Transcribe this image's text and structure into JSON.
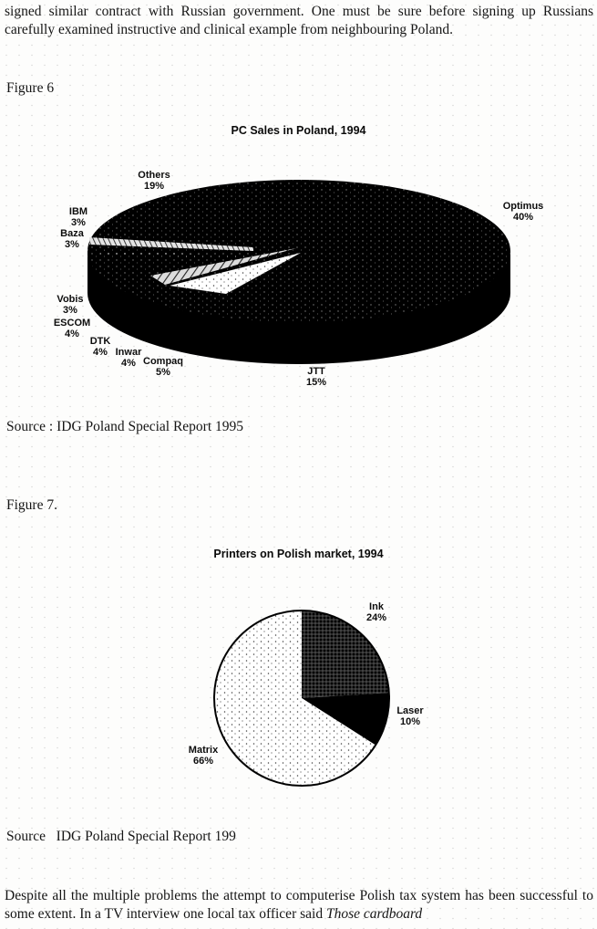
{
  "page": {
    "top_paragraph": "signed similar contract with Russian government. One must be sure before signing up Russians carefully examined instructive and clinical example from neighbouring Poland.",
    "bottom_paragraph_text": "Despite all the multiple problems the attempt to computerise Polish tax system has been successful to some extent. In a TV interview one local tax officer said ",
    "bottom_paragraph_italic": "Those cardboard"
  },
  "figures": {
    "fig6": {
      "label": "Figure 6",
      "source": "Source : IDG Poland Special Report 1995"
    },
    "fig7": {
      "label": "Figure 7.",
      "source": "Source   IDG Poland Special Report 199"
    }
  },
  "chart_data": [
    {
      "type": "pie",
      "style": "3d-exploded-monochrome",
      "title": "PC Sales in Poland, 1994",
      "legend_position": "none",
      "labels_on_chart": true,
      "colors": {
        "body": "#000000",
        "background": "#ffffff"
      },
      "slices": [
        {
          "name": "Optimus",
          "pct": "40%",
          "value": 40
        },
        {
          "name": "JTT",
          "pct": "15%",
          "value": 15
        },
        {
          "name": "Compaq",
          "pct": "5%",
          "value": 5
        },
        {
          "name": "Inwar",
          "pct": "4%",
          "value": 4
        },
        {
          "name": "DTK",
          "pct": "4%",
          "value": 4
        },
        {
          "name": "ESCOM",
          "pct": "4%",
          "value": 4
        },
        {
          "name": "Vobis",
          "pct": "3%",
          "value": 3
        },
        {
          "name": "Baza",
          "pct": "3%",
          "value": 3
        },
        {
          "name": "IBM",
          "pct": "3%",
          "value": 3
        },
        {
          "name": "Others",
          "pct": "19%",
          "value": 19
        }
      ]
    },
    {
      "type": "pie",
      "style": "flat-monochrome",
      "title": "Printers on Polish market, 1994",
      "legend_position": "none",
      "labels_on_chart": true,
      "slices": [
        {
          "name": "Ink",
          "pct": "24%",
          "value": 24,
          "fill": "crosshatch"
        },
        {
          "name": "Laser",
          "pct": "10%",
          "value": 10,
          "fill": "black"
        },
        {
          "name": "Matrix",
          "pct": "66%",
          "value": 66,
          "fill": "dots"
        }
      ]
    }
  ]
}
